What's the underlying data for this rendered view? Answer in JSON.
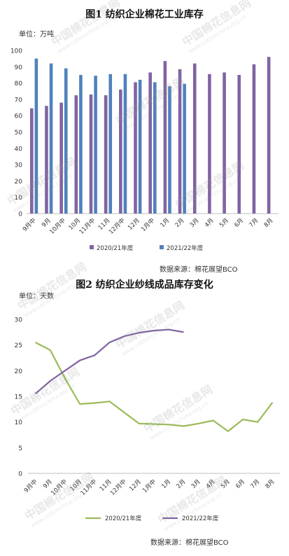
{
  "charts": [
    {
      "type": "bar",
      "title": "图1 纺织企业棉花工业库存",
      "unit": "单位：万吨",
      "source": "数据来源：棉花展望BCO",
      "categories": [
        "9月中",
        "9月",
        "10月中",
        "10月",
        "11月中",
        "11月",
        "12月中",
        "12月",
        "1月中",
        "1月",
        "2月",
        "3月",
        "4月",
        "5月",
        "6月",
        "7月",
        "8月"
      ],
      "ylim": [
        0,
        100
      ],
      "yticks": [
        0,
        10,
        20,
        30,
        40,
        50,
        60,
        70,
        80,
        90,
        100
      ],
      "series": [
        {
          "name": "2020/21年度",
          "color": "#8064a2",
          "values": [
            64.5,
            66,
            68,
            72.5,
            73,
            72.5,
            76,
            80.5,
            86.5,
            93.5,
            88.5,
            92,
            85.5,
            86.5,
            85,
            91.5,
            96
          ]
        },
        {
          "name": "2021/22年度",
          "color": "#4f81bd",
          "values": [
            95,
            92,
            89,
            85,
            84.5,
            85.5,
            85.5,
            82,
            80.5,
            78,
            79.5,
            null,
            null,
            null,
            null,
            null,
            null
          ]
        }
      ]
    },
    {
      "type": "line",
      "title": "图2 纺织企业纱线成品库存变化",
      "unit": "单位：天数",
      "source": "数据来源：棉花展望BCO",
      "categories": [
        "9月中",
        "9月",
        "10月中",
        "10月",
        "11月中",
        "11月",
        "12月中",
        "12月",
        "1月中",
        "1月",
        "2月",
        "3月",
        "4月",
        "5月",
        "6月",
        "7月",
        "8月"
      ],
      "ylim": [
        0,
        30
      ],
      "yticks": [
        0,
        5,
        10,
        15,
        20,
        25,
        30
      ],
      "series": [
        {
          "name": "2020/21年度",
          "color": "#9bbb59",
          "values": [
            25.5,
            24,
            18.5,
            13.5,
            13.7,
            14,
            null,
            9.7,
            null,
            9.5,
            9.2,
            9.7,
            10.3,
            8.2,
            10.5,
            10,
            13.8
          ]
        },
        {
          "name": "2021/22年度",
          "color": "#8064a2",
          "values": [
            15.5,
            18,
            20,
            22,
            23,
            25.5,
            26.7,
            27.4,
            27.8,
            28,
            27.5,
            null,
            null,
            null,
            null,
            null,
            null
          ]
        }
      ]
    }
  ],
  "watermark": {
    "text": "中国棉花信息网",
    "sub": "www.cottonchina.org.cn"
  }
}
